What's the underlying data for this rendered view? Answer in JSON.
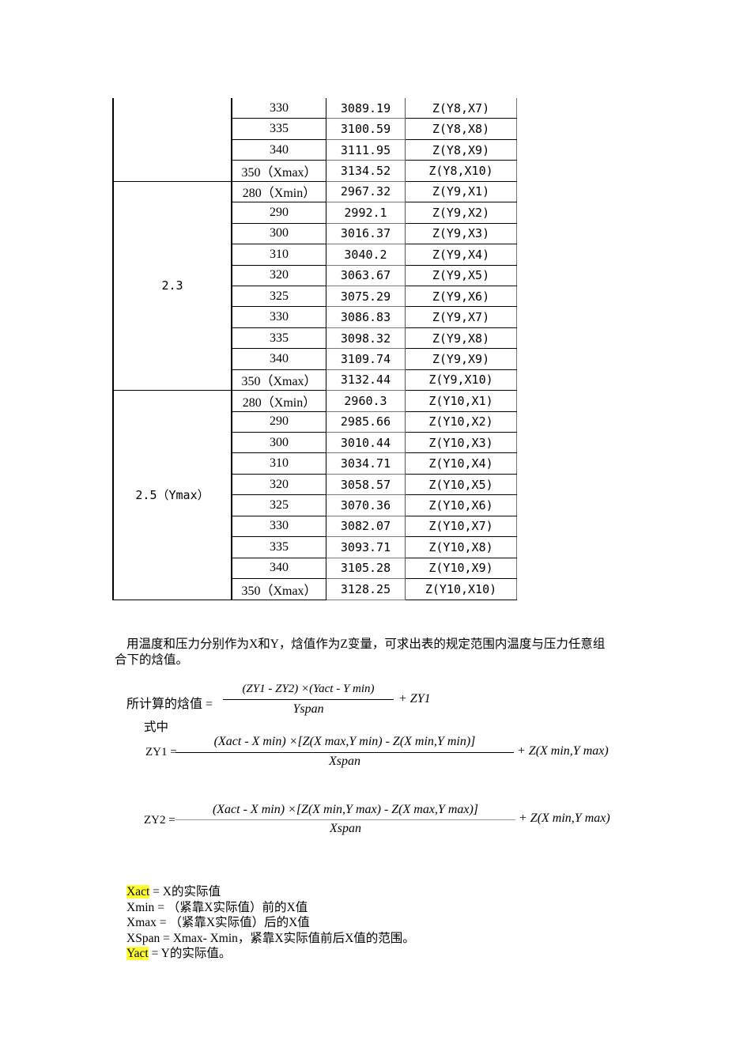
{
  "table": {
    "groups": [
      {
        "y": "",
        "rows": [
          [
            "330",
            "3089.19",
            "Z(Y8,X7)"
          ],
          [
            "335",
            "3100.59",
            "Z(Y8,X8)"
          ],
          [
            "340",
            "3111.95",
            "Z(Y8,X9)"
          ],
          [
            "350（Xmax）",
            "3134.52",
            "Z(Y8,X10)"
          ]
        ]
      },
      {
        "y": "2.3",
        "rows": [
          [
            "280（Xmin）",
            "2967.32",
            "Z(Y9,X1)"
          ],
          [
            "290",
            "2992.1",
            "Z(Y9,X2)"
          ],
          [
            "300",
            "3016.37",
            "Z(Y9,X3)"
          ],
          [
            "310",
            "3040.2",
            "Z(Y9,X4)"
          ],
          [
            "320",
            "3063.67",
            "Z(Y9,X5)"
          ],
          [
            "325",
            "3075.29",
            "Z(Y9,X6)"
          ],
          [
            "330",
            "3086.83",
            "Z(Y9,X7)"
          ],
          [
            "335",
            "3098.32",
            "Z(Y9,X8)"
          ],
          [
            "340",
            "3109.74",
            "Z(Y9,X9)"
          ],
          [
            "350（Xmax）",
            "3132.44",
            "Z(Y9,X10)"
          ]
        ]
      },
      {
        "y": "2.5（Ymax）",
        "rows": [
          [
            "280（Xmin）",
            "2960.3",
            "Z(Y10,X1)"
          ],
          [
            "290",
            "2985.66",
            "Z(Y10,X2)"
          ],
          [
            "300",
            "3010.44",
            "Z(Y10,X3)"
          ],
          [
            "310",
            "3034.71",
            "Z(Y10,X4)"
          ],
          [
            "320",
            "3058.57",
            "Z(Y10,X5)"
          ],
          [
            "325",
            "3070.36",
            "Z(Y10,X6)"
          ],
          [
            "330",
            "3082.07",
            "Z(Y10,X7)"
          ],
          [
            "335",
            "3093.71",
            "Z(Y10,X8)"
          ],
          [
            "340",
            "3105.28",
            "Z(Y10,X9)"
          ],
          [
            "350（Xmax）",
            "3128.25",
            "Z(Y10,X10)"
          ]
        ]
      }
    ]
  },
  "paragraph": {
    "line1": "用温度和压力分别作为X和Y，焓值作为Z变量，可求出表的规定范围内温度与压力任意组",
    "line2": "合下的焓值。"
  },
  "formulas": {
    "main": {
      "lhs": "所计算的焓值 =",
      "numerator": "(ZY1 - ZY2) ×(Yact - Y min)",
      "denominator": "Yspan",
      "tail": "+ ZY1"
    },
    "where": "式中",
    "zy1": {
      "lhs": "ZY1 =",
      "numerator": "(Xact - X min) ×[Z(X max,Y min) - Z(X min,Y min)]",
      "denominator": "Xspan",
      "tail": "+ Z(X min,Y max)"
    },
    "zy2": {
      "lhs": "ZY2 =",
      "numerator": "(Xact - X min) ×[Z(X min,Y max) - Z(X max,Y max)]",
      "denominator": "Xspan",
      "tail": "+ Z(X min,Y max)"
    }
  },
  "notes": [
    {
      "term": "Xact",
      "highlight": true,
      "text": " = X的实际值"
    },
    {
      "term": "Xmin",
      "highlight": false,
      "text": " = （紧靠X实际值）前的X值"
    },
    {
      "term": "Xmax",
      "highlight": false,
      "text": " = （紧靠X实际值）后的X值"
    },
    {
      "term": "XSpan",
      "highlight": false,
      "text": " = Xmax- Xmin，紧靠X实际值前后X值的范围。"
    },
    {
      "term": "Yact",
      "highlight": true,
      "text": " = Y的实际值。"
    }
  ],
  "colors": {
    "highlight": "#ffff33"
  }
}
